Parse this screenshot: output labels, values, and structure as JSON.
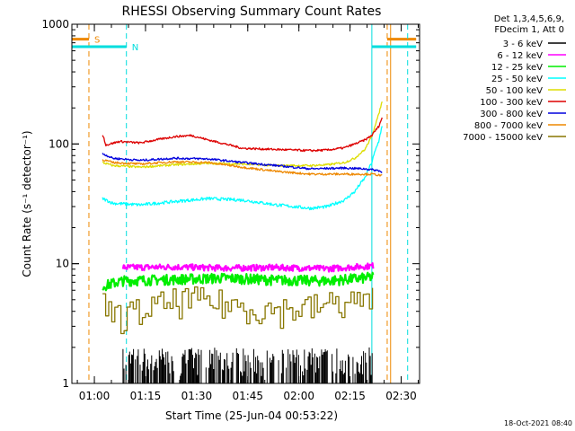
{
  "chart_data": {
    "type": "line",
    "title": "RHESSI Observing Summary Count Rates",
    "xlabel": "Start Time (25-Jun-04 00:53:22)",
    "ylabel": "Count Rate (s⁻¹ detector⁻¹)",
    "yscale": "log",
    "ylim": [
      1,
      1000
    ],
    "y_ticks": [
      {
        "value": 1,
        "label": "1"
      },
      {
        "value": 10,
        "label": "10"
      },
      {
        "value": 100,
        "label": "100"
      },
      {
        "value": 1000,
        "label": "1000"
      }
    ],
    "x_unit": "minutes since 00:53:22",
    "xlim": [
      0,
      102
    ],
    "x_ticks": [
      {
        "value": 6.6,
        "label": "01:00"
      },
      {
        "value": 21.6,
        "label": "01:15"
      },
      {
        "value": 36.6,
        "label": "01:30"
      },
      {
        "value": 51.6,
        "label": "01:45"
      },
      {
        "value": 66.6,
        "label": "02:00"
      },
      {
        "value": 81.6,
        "label": "02:15"
      },
      {
        "value": 96.6,
        "label": "02:30"
      }
    ],
    "legend_header": [
      "Det 1,3,4,5,6,9,",
      "FDecim 1, Att 0"
    ],
    "series": [
      {
        "name": "3 - 6 keV",
        "color": "#000000",
        "kind": "spikes",
        "start": 15,
        "end": 88.5,
        "base": 1,
        "min": 1.15,
        "max": 2.0
      },
      {
        "name": "6 - 12 keV",
        "color": "#ff00ff",
        "kind": "noisy",
        "start": 15,
        "end": 88.5,
        "x": [
          15,
          30,
          45,
          60,
          75,
          86,
          88.5
        ],
        "y": [
          9.3,
          9.4,
          9.2,
          9.3,
          9.1,
          9.5,
          9.6
        ],
        "noise": 0.06
      },
      {
        "name": "12 - 25 keV",
        "color": "#00ee00",
        "kind": "noisy",
        "start": 9,
        "end": 88.5,
        "x": [
          9,
          15,
          30,
          45,
          60,
          75,
          86,
          88.5
        ],
        "y": [
          6.5,
          7.2,
          7.4,
          7.6,
          7.3,
          7.2,
          7.6,
          7.8
        ],
        "noise": 0.1
      },
      {
        "name": "25 - 50 keV",
        "color": "#00ffff",
        "kind": "line",
        "start": 9,
        "end": 91,
        "x": [
          9,
          12,
          20,
          30,
          40,
          50,
          60,
          70,
          75,
          80,
          83,
          86,
          88,
          90,
          91
        ],
        "y": [
          35,
          32,
          31,
          33,
          35,
          34,
          31,
          29,
          30,
          34,
          40,
          52,
          70,
          105,
          140
        ],
        "noise": 0.03
      },
      {
        "name": "50 - 100 keV",
        "color": "#dddd00",
        "kind": "line",
        "start": 9,
        "end": 91,
        "x": [
          9,
          12,
          20,
          30,
          40,
          50,
          60,
          70,
          75,
          80,
          83,
          86,
          88,
          90,
          91
        ],
        "y": [
          70,
          66,
          64,
          67,
          69,
          68,
          66,
          66,
          67,
          70,
          76,
          90,
          115,
          175,
          225
        ],
        "noise": 0.02
      },
      {
        "name": "100 - 300 keV",
        "color": "#dd0000",
        "kind": "line",
        "start": 9,
        "end": 91,
        "x": [
          9,
          10,
          14,
          20,
          30,
          35,
          40,
          50,
          60,
          70,
          75,
          80,
          83,
          86,
          88,
          90,
          91
        ],
        "y": [
          120,
          98,
          105,
          102,
          115,
          118,
          108,
          92,
          90,
          88,
          89,
          93,
          100,
          108,
          118,
          140,
          165
        ],
        "noise": 0.02
      },
      {
        "name": "300 - 800 keV",
        "color": "#0000dd",
        "kind": "line",
        "start": 9,
        "end": 91,
        "x": [
          9,
          12,
          20,
          30,
          40,
          50,
          60,
          70,
          80,
          86,
          88,
          90,
          91
        ],
        "y": [
          83,
          76,
          73,
          76,
          75,
          70,
          66,
          62,
          63,
          62,
          61,
          60,
          58
        ],
        "noise": 0.02
      },
      {
        "name": "800 - 7000 keV",
        "color": "#ee8800",
        "kind": "line",
        "start": 9,
        "end": 91,
        "x": [
          9,
          12,
          20,
          30,
          40,
          50,
          60,
          70,
          80,
          86,
          88,
          90,
          91
        ],
        "y": [
          74,
          70,
          68,
          71,
          70,
          64,
          59,
          56,
          56,
          56,
          56,
          55,
          54
        ],
        "noise": 0.02
      },
      {
        "name": "7000 - 15000 keV",
        "color": "#887700",
        "kind": "steps",
        "start": 9,
        "end": 88.5,
        "x": [
          9,
          13,
          20,
          26,
          33,
          40,
          50,
          60,
          70,
          80,
          88.5
        ],
        "y": [
          4.5,
          3.6,
          4.0,
          4.5,
          5.0,
          4.8,
          4.4,
          4.1,
          4.3,
          4.8,
          5.0
        ],
        "noise": 0.3
      }
    ],
    "markers": [
      {
        "label": "S",
        "color": "#ee8800",
        "style": "dashed",
        "x": [
          5,
          92.5
        ],
        "bar_value": 750,
        "bar_ranges": [
          [
            0,
            5
          ],
          [
            92.5,
            101
          ]
        ],
        "solid_x": 93.5
      },
      {
        "label": "N",
        "color": "#00dddd",
        "style": "dashed",
        "x": [
          16,
          98.5
        ],
        "bar_value": 650,
        "bar_ranges": [
          [
            0,
            16
          ],
          [
            88,
            101
          ]
        ],
        "solid_x": 88
      }
    ],
    "footer": "18-Oct-2021 08:40"
  }
}
